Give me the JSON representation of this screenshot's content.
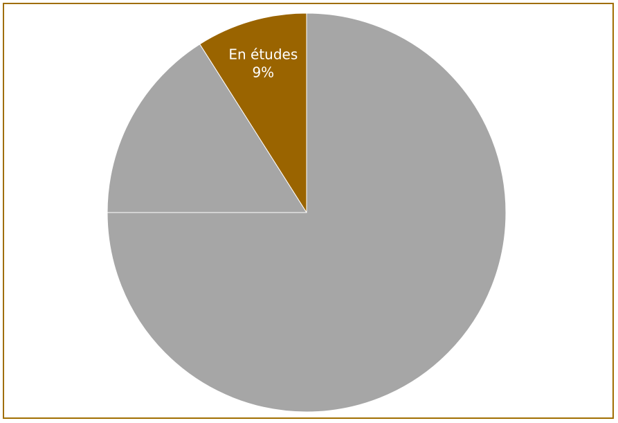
{
  "chart_data": {
    "type": "pie",
    "start_angle_deg": 0,
    "direction": "counterclockwise",
    "slices": [
      {
        "label": "En études",
        "value": 9,
        "color": "#9a6400",
        "show_label": true
      },
      {
        "label": "",
        "value": 16,
        "color": "#a6a6a6",
        "show_label": false
      },
      {
        "label": "",
        "value": 75,
        "color": "#a6a6a6",
        "show_label": false
      }
    ],
    "title": "",
    "legend": "none"
  }
}
